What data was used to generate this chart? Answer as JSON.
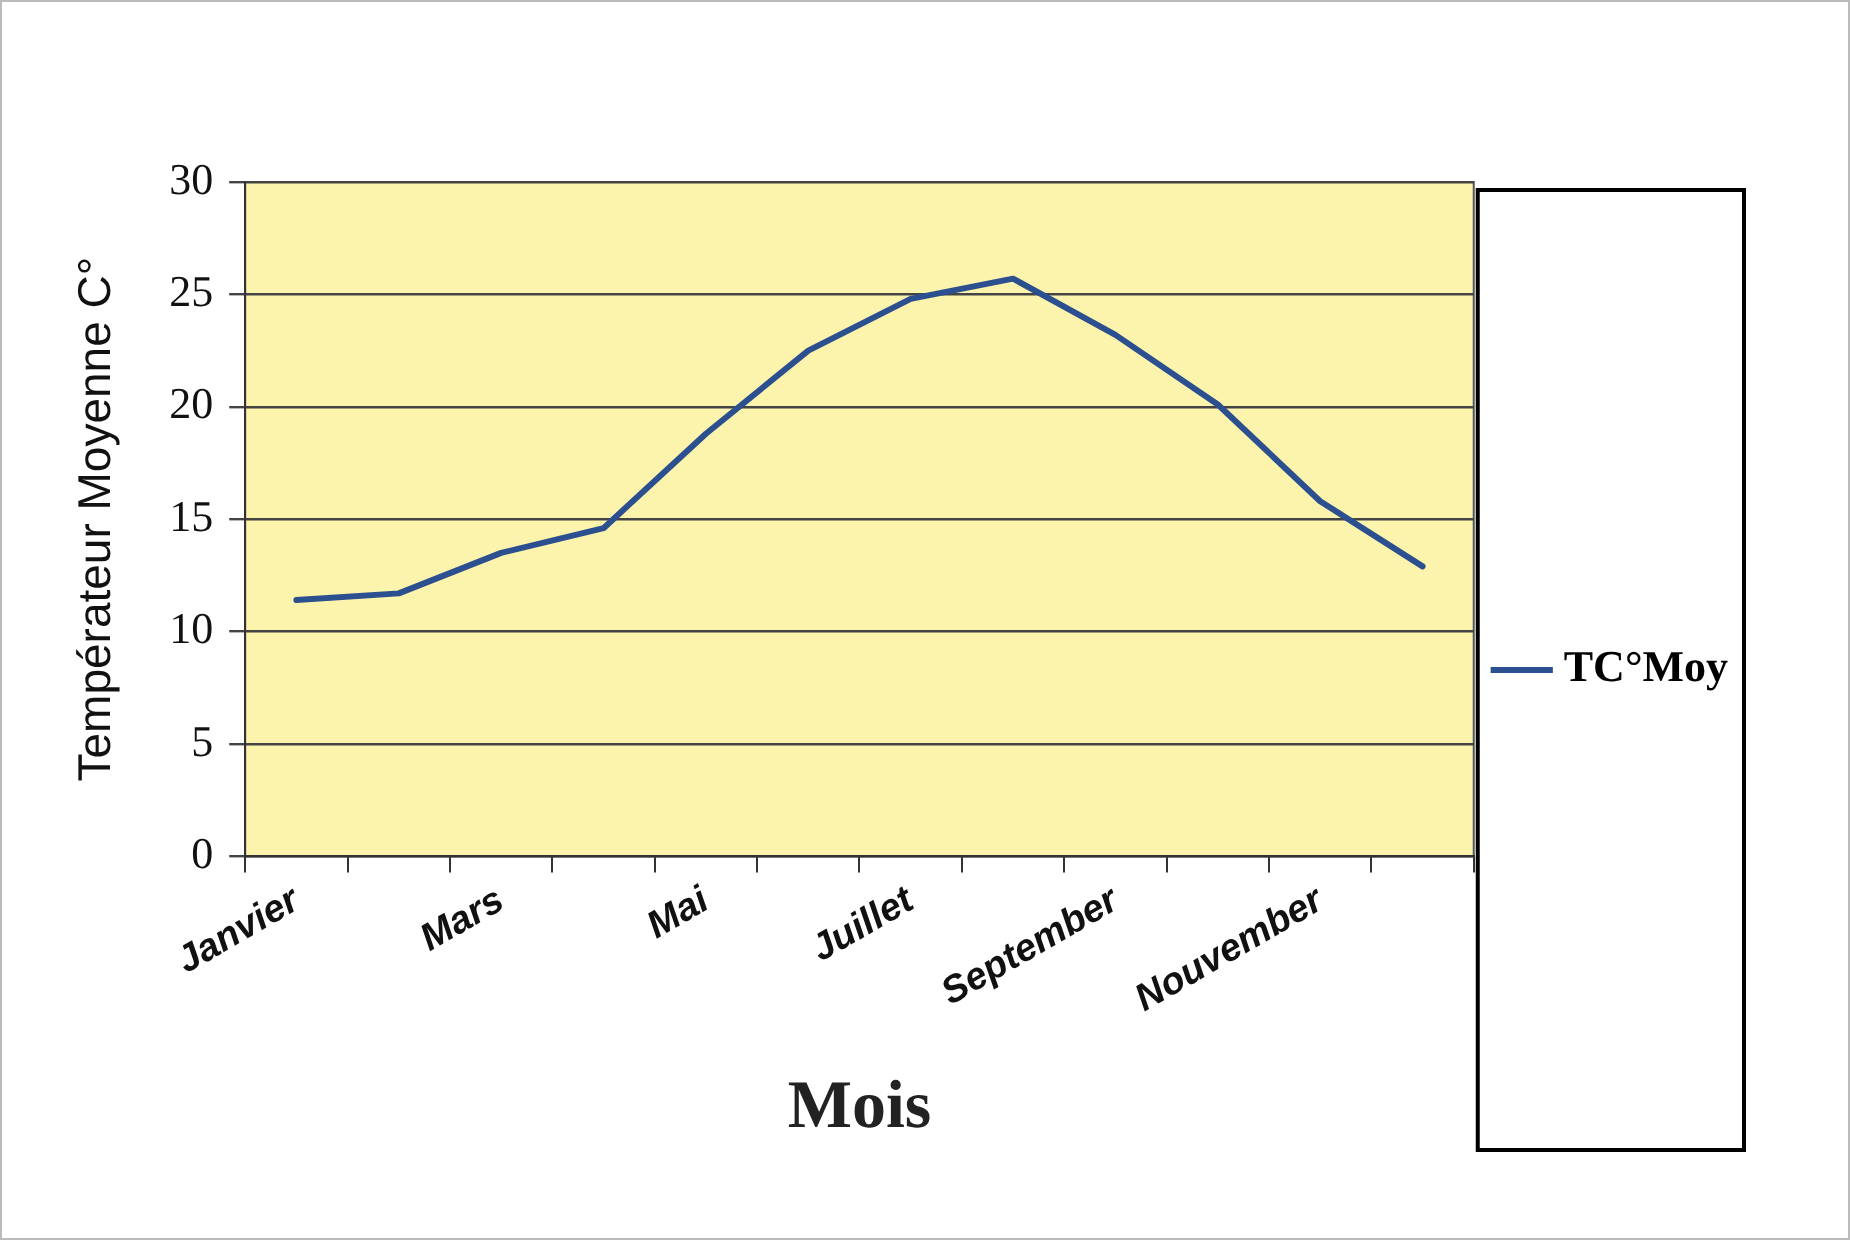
{
  "chart_data": {
    "type": "line",
    "xlabel": "Mois",
    "ylabel": "Températeur Moyenne C°",
    "categories": [
      "Janvier",
      null,
      "Mars",
      null,
      "Mai",
      null,
      "Juillet",
      null,
      "September",
      null,
      "Nouvember",
      null
    ],
    "series": [
      {
        "name": "TC°Moy",
        "color": "#2b4f8f",
        "values": [
          11.4,
          11.7,
          13.5,
          14.6,
          18.8,
          22.5,
          24.8,
          25.7,
          23.2,
          20.1,
          15.8,
          12.9
        ]
      }
    ],
    "ylim": [
      0,
      30
    ],
    "yticks": [
      0,
      5,
      10,
      15,
      20,
      25,
      30
    ],
    "grid": "y",
    "legend": "right",
    "marker": "none"
  }
}
